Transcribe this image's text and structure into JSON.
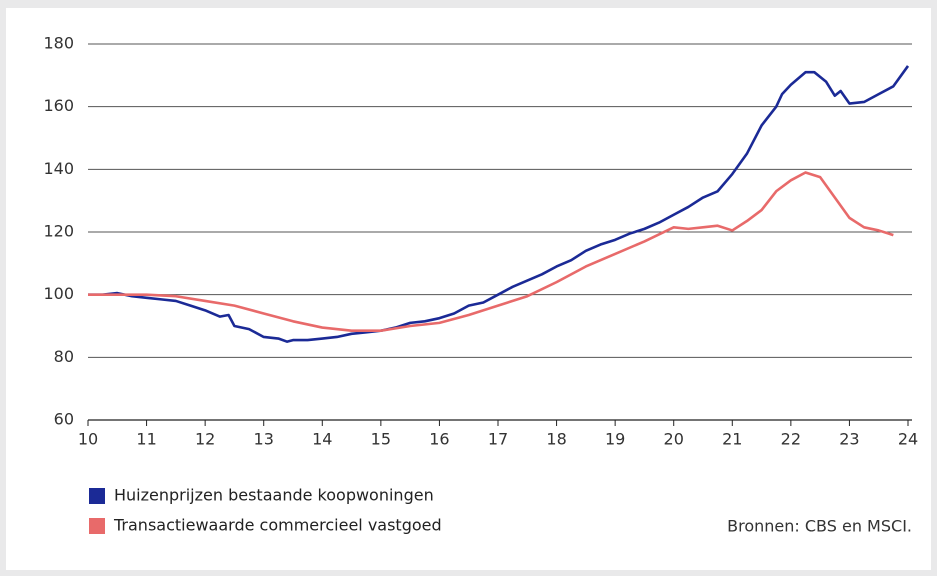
{
  "chart_data": {
    "type": "line",
    "source": "Bronnen: CBS en MSCI.",
    "xlim": [
      10,
      24
    ],
    "xticks": [
      10,
      11,
      12,
      13,
      14,
      15,
      16,
      17,
      18,
      19,
      20,
      21,
      22,
      23,
      24
    ],
    "ylim": [
      60,
      180
    ],
    "yticks": [
      60,
      80,
      100,
      120,
      140,
      160,
      180
    ],
    "grid": true,
    "series": [
      {
        "name": "Huizenprijzen bestaande koopwoningen",
        "color": "#1b2a96",
        "x": [
          10,
          10.25,
          10.5,
          10.75,
          11,
          11.25,
          11.5,
          11.75,
          12,
          12.25,
          12.4,
          12.5,
          12.75,
          13,
          13.25,
          13.4,
          13.5,
          13.75,
          14,
          14.25,
          14.5,
          14.75,
          15,
          15.25,
          15.5,
          15.75,
          16,
          16.25,
          16.5,
          16.75,
          17,
          17.25,
          17.5,
          17.75,
          18,
          18.25,
          18.5,
          18.75,
          19,
          19.25,
          19.5,
          19.75,
          20,
          20.25,
          20.5,
          20.75,
          21,
          21.25,
          21.5,
          21.75,
          21.85,
          22,
          22.25,
          22.4,
          22.6,
          22.75,
          22.85,
          23,
          23.25,
          23.5,
          23.75,
          24
        ],
        "values": [
          100,
          100,
          100.5,
          99.5,
          99,
          98.5,
          98,
          96.5,
          95,
          93,
          93.5,
          90,
          89,
          86.5,
          86,
          85,
          85.5,
          85.5,
          86,
          86.5,
          87.5,
          88,
          88.5,
          89.5,
          91,
          91.5,
          92.5,
          94,
          96.5,
          97.5,
          100,
          102.5,
          104.5,
          106.5,
          109,
          111,
          114,
          116,
          117.5,
          119.5,
          121,
          123,
          125.5,
          128,
          131,
          133,
          138.5,
          145,
          154,
          160,
          164,
          167,
          171,
          171,
          168,
          163.5,
          165,
          161,
          161.5,
          164,
          166.5,
          173
        ]
      },
      {
        "name": "Transactiewaarde commercieel vastgoed",
        "color": "#e86a6a",
        "x": [
          10,
          10.5,
          11,
          11.5,
          12,
          12.5,
          13,
          13.5,
          14,
          14.5,
          15,
          15.5,
          16,
          16.5,
          17,
          17.5,
          18,
          18.5,
          19,
          19.5,
          20,
          20.25,
          20.5,
          20.75,
          21,
          21.25,
          21.5,
          21.75,
          22,
          22.25,
          22.5,
          22.75,
          23,
          23.25,
          23.5,
          23.75
        ],
        "values": [
          100,
          100,
          100,
          99.5,
          98,
          96.5,
          94,
          91.5,
          89.5,
          88.5,
          88.5,
          90,
          91,
          93.5,
          96.5,
          99.5,
          104,
          109,
          113,
          117,
          121.5,
          121,
          121.5,
          122,
          120.5,
          123.5,
          127,
          133,
          136.5,
          139,
          137.5,
          131,
          124.5,
          121.5,
          120.5,
          119
        ]
      }
    ]
  }
}
